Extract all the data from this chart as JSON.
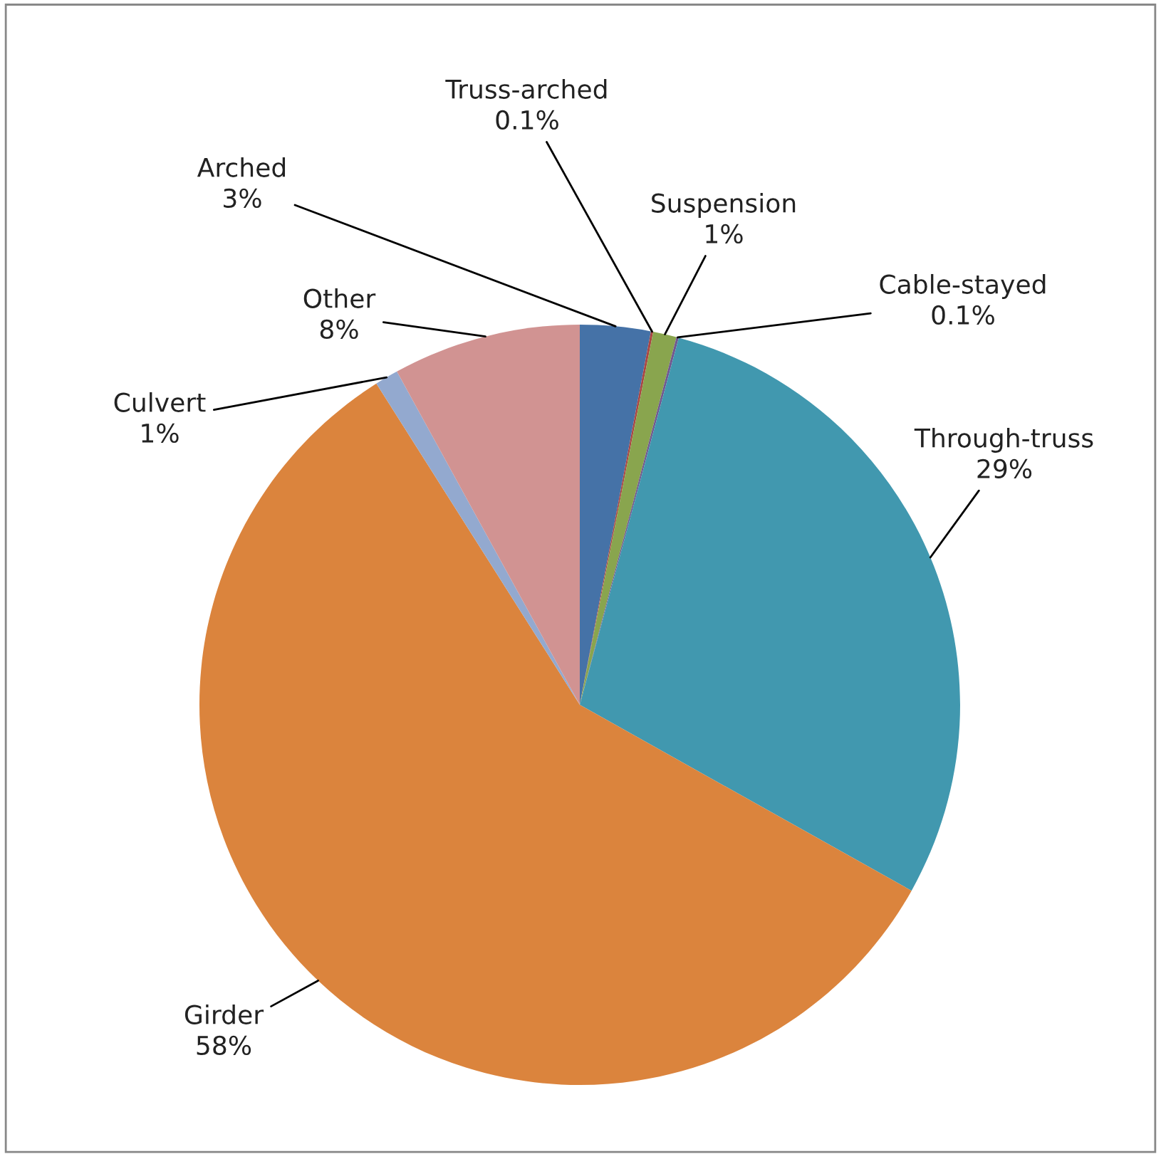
{
  "chart_data": {
    "type": "pie",
    "categories": [
      "Arched",
      "Truss-arched",
      "Suspension",
      "Cable-stayed",
      "Through-truss",
      "Girder",
      "Culvert",
      "Other"
    ],
    "values": [
      3,
      0.1,
      1,
      0.1,
      29,
      58,
      1,
      8
    ],
    "colors": [
      "#4572a7",
      "#aa4643",
      "#89a54e",
      "#71588f",
      "#4198af",
      "#db843d",
      "#93a9cf",
      "#d19392"
    ],
    "value_labels": [
      "3%",
      "0.1%",
      "1%",
      "0.1%",
      "29%",
      "58%",
      "1%",
      "8%"
    ],
    "legend": false
  }
}
